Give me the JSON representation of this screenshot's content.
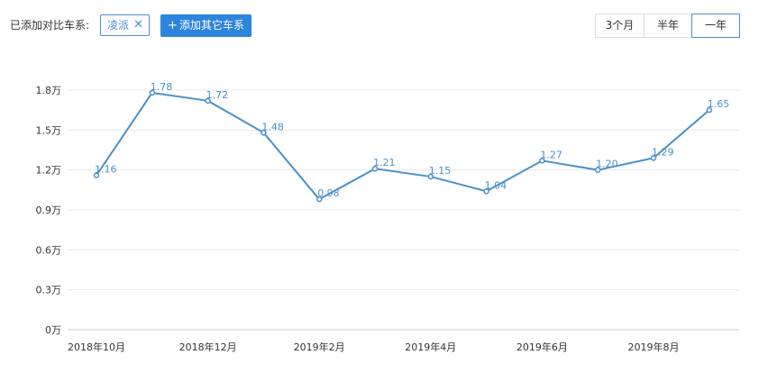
{
  "toolbar": {
    "compare_label": "已添加对比车系:",
    "tag_label": "凌派",
    "tag_close_glyph": "✕",
    "add_button_plus": "+",
    "add_button_label": "添加其它车系",
    "ranges": [
      {
        "label": "3个月",
        "selected": false
      },
      {
        "label": "半年",
        "selected": false
      },
      {
        "label": "一年",
        "selected": true
      }
    ]
  },
  "colors": {
    "accent": "#2d84dc",
    "line": "#4a90c8",
    "grid": "#e8e8e8",
    "axis_text": "#333333"
  },
  "chart_data": {
    "type": "line",
    "title": "",
    "xlabel": "",
    "ylabel": "",
    "ylim": [
      0,
      1.8
    ],
    "y_ticks": [
      0,
      0.3,
      0.6,
      0.9,
      1.2,
      1.5,
      1.8
    ],
    "y_tick_labels": [
      "0万",
      "0.3万",
      "0.6万",
      "0.9万",
      "1.2万",
      "1.5万",
      "1.8万"
    ],
    "x": [
      "2018年10月",
      "2018年11月",
      "2018年12月",
      "2019年1月",
      "2019年2月",
      "2019年3月",
      "2019年4月",
      "2019年5月",
      "2019年6月",
      "2019年7月",
      "2019年8月",
      "2019年9月"
    ],
    "x_tick_labels": [
      "2018年10月",
      "2018年12月",
      "2019年2月",
      "2019年4月",
      "2019年6月",
      "2019年8月"
    ],
    "x_tick_indices": [
      0,
      2,
      4,
      6,
      8,
      10
    ],
    "grid": true,
    "series": [
      {
        "values": [
          1.16,
          1.78,
          1.72,
          1.48,
          0.98,
          1.21,
          1.15,
          1.04,
          1.27,
          1.2,
          1.29,
          1.65
        ],
        "labels": [
          "1.16",
          "1.78",
          "1.72",
          "1.48",
          "0.98",
          "1.21",
          "1.15",
          "1.04",
          "1.27",
          "1.20",
          "1.29",
          "1.65"
        ]
      }
    ]
  }
}
